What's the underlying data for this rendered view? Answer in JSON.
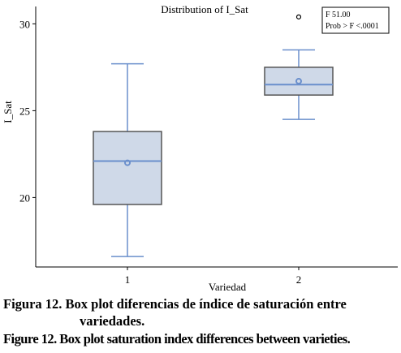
{
  "chart_data": {
    "type": "box",
    "title": "Distribution of I_Sat",
    "xlabel": "Variedad",
    "ylabel": "I_Sat",
    "ylim": [
      16,
      31
    ],
    "yticks": [
      20,
      25,
      30
    ],
    "categories": [
      "1",
      "2"
    ],
    "boxes": [
      {
        "category": "1",
        "min": 16.6,
        "q1": 19.6,
        "median": 22.1,
        "mean": 22.0,
        "q3": 23.8,
        "max": 27.7,
        "outliers": []
      },
      {
        "category": "2",
        "min": 24.5,
        "q1": 25.9,
        "median": 26.5,
        "mean": 26.7,
        "q3": 27.5,
        "max": 28.5,
        "outliers": [
          30.4
        ]
      }
    ],
    "stats_box": {
      "line1": "F 51.00",
      "line2": "Prob > F <.0001"
    },
    "grid": false,
    "colors": {
      "box_fill": "#cfd9e8",
      "box_stroke": "#555555",
      "whisker": "#6a8fcc",
      "median": "#6a8fcc",
      "mean": "#6a8fcc",
      "axis": "#000000"
    }
  },
  "caption": {
    "es_line1": "Figura 12. Box plot diferencias de índice de saturación entre",
    "es_line2": "variedades.",
    "en": "Figure 12. Box plot saturation index differences between varieties."
  }
}
